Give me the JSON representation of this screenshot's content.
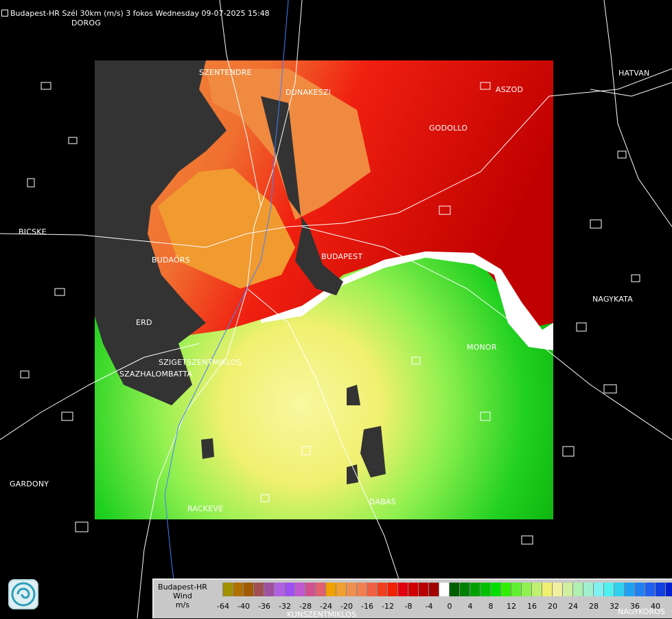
{
  "title": "Budapest-HR Szél 30km (m/s) 3 fokos Wednesday 09-07-2025 15:48",
  "cities": [
    {
      "id": "dorog",
      "label": "DOROG"
    },
    {
      "id": "szentendre",
      "label": "SZENTENDRE"
    },
    {
      "id": "dunakeszi",
      "label": "DUNAKESZI"
    },
    {
      "id": "hatvan",
      "label": "HATVAN"
    },
    {
      "id": "aszod",
      "label": "ASZOD"
    },
    {
      "id": "godollo",
      "label": "GODOLLO"
    },
    {
      "id": "bicske",
      "label": "BICSKE"
    },
    {
      "id": "budaors",
      "label": "BUDAÖRS"
    },
    {
      "id": "budapest",
      "label": "BUDAPEST"
    },
    {
      "id": "nagykata",
      "label": "NAGYKATA"
    },
    {
      "id": "erd",
      "label": "ERD"
    },
    {
      "id": "monor",
      "label": "MONOR"
    },
    {
      "id": "szigetszentmiklos",
      "label": "SZIGETSZENTMIKLOS"
    },
    {
      "id": "szazhalombatta",
      "label": "SZAZHALOMBATTA"
    },
    {
      "id": "gardony",
      "label": "GARDONY"
    },
    {
      "id": "rackeve",
      "label": "RACKEVE"
    },
    {
      "id": "dabas",
      "label": "DABAS"
    }
  ],
  "legend": {
    "radar": "Budapest-HR",
    "variable": "Wind",
    "unit": "m/s",
    "colors": [
      "#c8c8c8",
      "#a09000",
      "#b07000",
      "#a05a00",
      "#a05050",
      "#a050a0",
      "#b060e0",
      "#a050f0",
      "#c058d0",
      "#d05090",
      "#e06070",
      "#f0a000",
      "#f0a030",
      "#f09050",
      "#f08050",
      "#f06040",
      "#f04020",
      "#f02000",
      "#e00010",
      "#d00000",
      "#b80000",
      "#a00000",
      "#ffffff",
      "#006000",
      "#008000",
      "#00a000",
      "#00c000",
      "#00e000",
      "#30f000",
      "#60f030",
      "#90f050",
      "#c0f070",
      "#f0f070",
      "#f0f0a0",
      "#d0f0a0",
      "#b0f0b0",
      "#a0f0d0",
      "#80f0f0",
      "#50f0f0",
      "#30d0f0",
      "#20a0f0",
      "#2080f0",
      "#2060f0",
      "#1040e0",
      "#0020d0",
      "#0000c0"
    ],
    "tick_labels": [
      "-64",
      "-40",
      "-36",
      "-32",
      "-28",
      "-24",
      "-20",
      "-16",
      "-12",
      "-8",
      "-4",
      "0",
      "4",
      "8",
      "12",
      "16",
      "20",
      "24",
      "28",
      "32",
      "36",
      "40"
    ]
  },
  "bottom_labels": {
    "kunszentmiklos": "KUNSZENTMIKLOS",
    "nagykoros": "NAGYKOROS"
  }
}
